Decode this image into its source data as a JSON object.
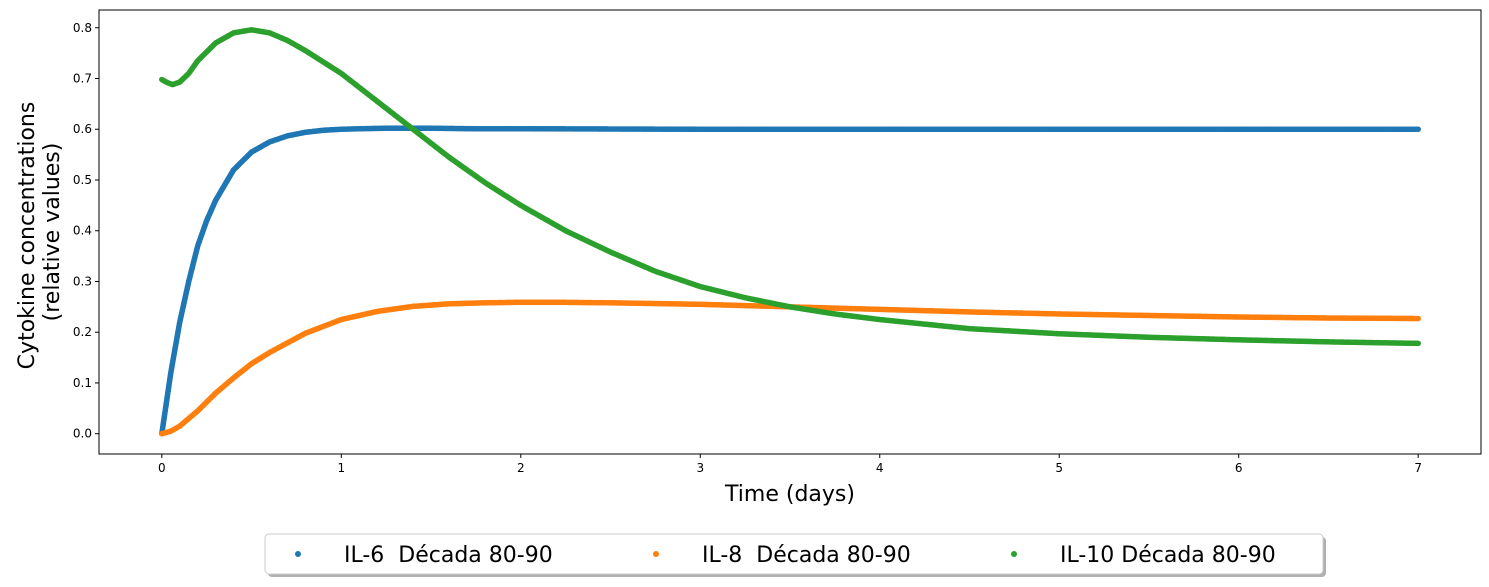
{
  "chart_data": {
    "type": "scatter",
    "title": "",
    "xlabel": "Time (days)",
    "ylabel_lines": [
      "Cytokine concentrations",
      "(relative values)"
    ],
    "xlim": [
      -0.35,
      7.35
    ],
    "ylim": [
      -0.04,
      0.835
    ],
    "xticks": [
      0,
      1,
      2,
      3,
      4,
      5,
      6,
      7
    ],
    "yticks": [
      0.0,
      0.1,
      0.2,
      0.3,
      0.4,
      0.5,
      0.6,
      0.7,
      0.8
    ],
    "ytick_labels": [
      "0.0",
      "0.1",
      "0.2",
      "0.3",
      "0.4",
      "0.5",
      "0.6",
      "0.7",
      "0.8"
    ],
    "grid": false,
    "legend_position": "bottom-center-outside",
    "series": [
      {
        "name": "IL-6  Década 80-90",
        "color": "#1f77b4",
        "x": [
          0,
          0.05,
          0.1,
          0.15,
          0.2,
          0.25,
          0.3,
          0.4,
          0.5,
          0.6,
          0.7,
          0.8,
          0.9,
          1.0,
          1.1,
          1.25,
          1.5,
          1.75,
          2,
          3,
          4,
          5,
          6,
          7
        ],
        "y": [
          0.0,
          0.12,
          0.22,
          0.3,
          0.37,
          0.42,
          0.46,
          0.52,
          0.555,
          0.575,
          0.587,
          0.594,
          0.598,
          0.6,
          0.601,
          0.602,
          0.602,
          0.601,
          0.601,
          0.6,
          0.6,
          0.6,
          0.6,
          0.6
        ]
      },
      {
        "name": "IL-8  Década 80-90",
        "color": "#ff7f0e",
        "x": [
          0,
          0.05,
          0.1,
          0.2,
          0.3,
          0.4,
          0.5,
          0.6,
          0.8,
          1.0,
          1.2,
          1.4,
          1.6,
          1.8,
          2.0,
          2.2,
          2.5,
          3.0,
          3.5,
          4.0,
          4.5,
          5.0,
          5.5,
          6.0,
          6.5,
          7.0
        ],
        "y": [
          0.0,
          0.005,
          0.015,
          0.045,
          0.08,
          0.11,
          0.138,
          0.16,
          0.198,
          0.225,
          0.241,
          0.251,
          0.256,
          0.258,
          0.259,
          0.259,
          0.258,
          0.255,
          0.25,
          0.245,
          0.24,
          0.236,
          0.233,
          0.23,
          0.228,
          0.227
        ]
      },
      {
        "name": "IL-10 Década 80-90",
        "color": "#2ca02c",
        "x": [
          0,
          0.03,
          0.06,
          0.1,
          0.15,
          0.2,
          0.3,
          0.4,
          0.5,
          0.6,
          0.7,
          0.8,
          1.0,
          1.2,
          1.4,
          1.6,
          1.8,
          2.0,
          2.25,
          2.5,
          2.75,
          3.0,
          3.25,
          3.5,
          3.75,
          4.0,
          4.5,
          5.0,
          5.5,
          6.0,
          6.5,
          7.0
        ],
        "y": [
          0.698,
          0.692,
          0.688,
          0.693,
          0.71,
          0.735,
          0.77,
          0.79,
          0.796,
          0.79,
          0.775,
          0.755,
          0.71,
          0.655,
          0.6,
          0.545,
          0.495,
          0.45,
          0.4,
          0.358,
          0.32,
          0.29,
          0.268,
          0.25,
          0.236,
          0.225,
          0.207,
          0.197,
          0.19,
          0.185,
          0.181,
          0.178
        ]
      }
    ]
  }
}
